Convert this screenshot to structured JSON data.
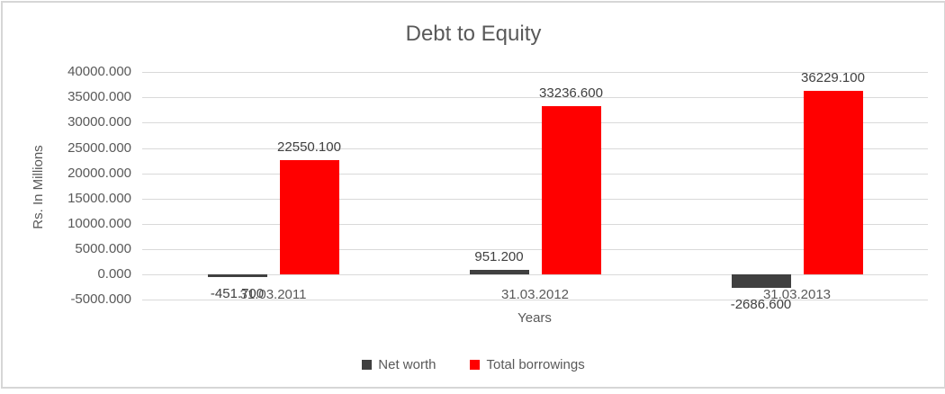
{
  "title": "Debt to Equity",
  "y_axis": {
    "title": "Rs. In Millions",
    "ticks": [
      "40000.000",
      "35000.000",
      "30000.000",
      "25000.000",
      "20000.000",
      "15000.000",
      "10000.000",
      "5000.000",
      "0.000",
      "-5000.000"
    ]
  },
  "x_axis": {
    "title": "Years",
    "categories": [
      "31.03.2011",
      "31.03.2012",
      "31.03.2013"
    ]
  },
  "colors": {
    "net_worth": "#404040",
    "total_borrowings": "#ff0000",
    "gridline": "#d9d9d9",
    "axis_text": "#595959",
    "data_label_text": "#404040"
  },
  "chart_data": {
    "type": "bar",
    "title": "Debt to Equity",
    "xlabel": "Years",
    "ylabel": "Rs. In Millions",
    "categories": [
      "31.03.2011",
      "31.03.2012",
      "31.03.2013"
    ],
    "series": [
      {
        "name": "Net worth",
        "color": "#404040",
        "values": [
          -451.7,
          951.2,
          -2686.6
        ],
        "labels": [
          "-451.700",
          "951.200",
          "-2686.600"
        ]
      },
      {
        "name": "Total borrowings",
        "color": "#ff0000",
        "values": [
          22550.1,
          33236.6,
          36229.1
        ],
        "labels": [
          "22550.100",
          "33236.600",
          "36229.100"
        ]
      }
    ],
    "ylim": [
      -5000,
      40000
    ],
    "ytick_step": 5000,
    "grid": true,
    "legend_position": "bottom"
  }
}
